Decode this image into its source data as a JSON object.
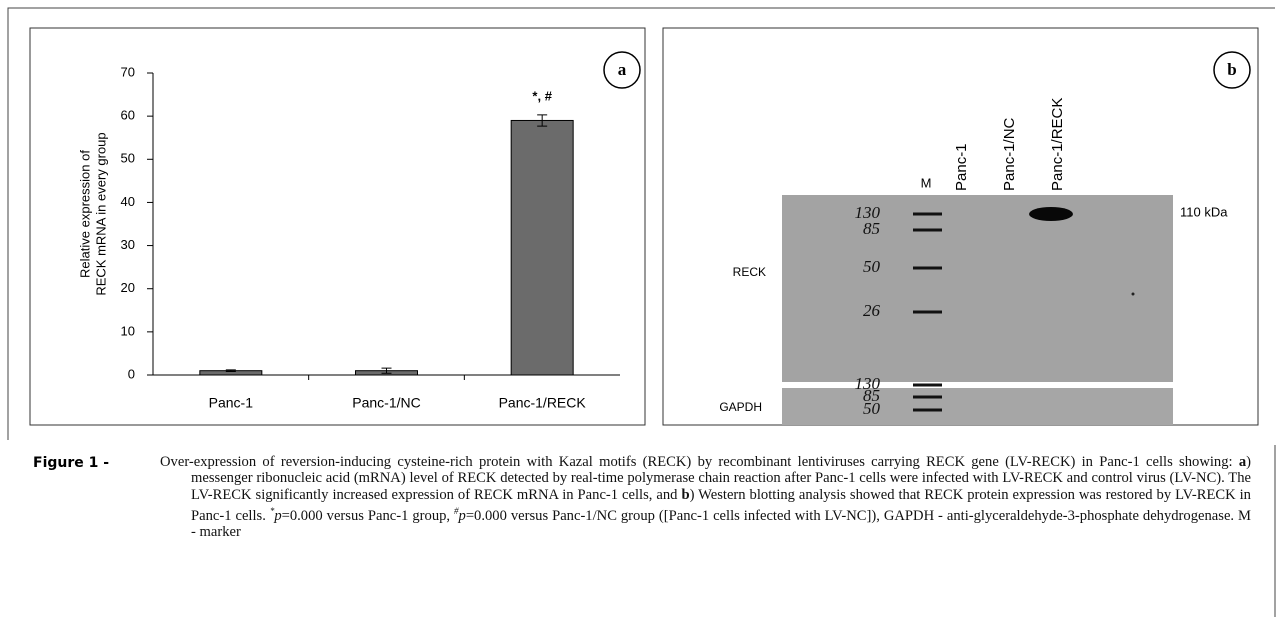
{
  "chart_data": {
    "type": "bar",
    "panel_label": "a",
    "ylabel": [
      "Relative expression of",
      "RECK mRNA in every group"
    ],
    "categories": [
      "Panc-1",
      "Panc-1/NC",
      "Panc-1/RECK"
    ],
    "values": [
      1,
      1,
      59
    ],
    "errors": [
      0.2,
      0.6,
      1.3
    ],
    "bar_labels": [
      null,
      null,
      "*, #"
    ],
    "color": "#6b6b6b",
    "ylim": [
      0,
      70
    ],
    "yticks": [
      0,
      10,
      20,
      30,
      40,
      50,
      60,
      70
    ]
  },
  "panel_b": {
    "panel_label": "b",
    "lanes": [
      "M",
      "Panc-1",
      "Panc-1/NC",
      "Panc-1/RECK"
    ],
    "size_label": "110 kDa",
    "rows": [
      "RECK",
      "GAPDH"
    ],
    "marker_labels_top": [
      "130",
      "85",
      "50",
      "26"
    ],
    "marker_labels_bottom": [
      "130",
      "85",
      "50"
    ]
  },
  "caption": {
    "label": "Figure 1 -",
    "segments": [
      {
        "text": "Over-expression of reversion-inducing cysteine-rich protein with Kazal motifs (RECK) by recombinant lentiviruses carrying RECK gene (LV-RECK) in Panc-1 cells showing: "
      },
      {
        "text": "a",
        "style": "b"
      },
      {
        "text": ") messenger ribonucleic acid (mRNA) level of RECK detected by real-time polymerase chain reaction after Panc-1 cells were infected with LV-RECK and control virus (LV-NC). The LV-RECK significantly increased expression of RECK mRNA in Panc-1 cells, and "
      },
      {
        "text": "b",
        "style": "b"
      },
      {
        "text": ") Western blotting analysis showed that RECK protein expression was restored by LV-RECK in Panc-1 cells. "
      },
      {
        "text": "*",
        "style": "sup"
      },
      {
        "text": "p",
        "style": "i"
      },
      {
        "text": "=0.000 versus Panc-1 group, "
      },
      {
        "text": "#",
        "style": "sup"
      },
      {
        "text": "p",
        "style": "i"
      },
      {
        "text": "=0.000  versus Panc-1/NC group ([Panc-1 cells infected with LV-NC]), GAPDH - anti-glyceraldehyde-3-phosphate dehydrogenase. M - marker"
      }
    ]
  }
}
